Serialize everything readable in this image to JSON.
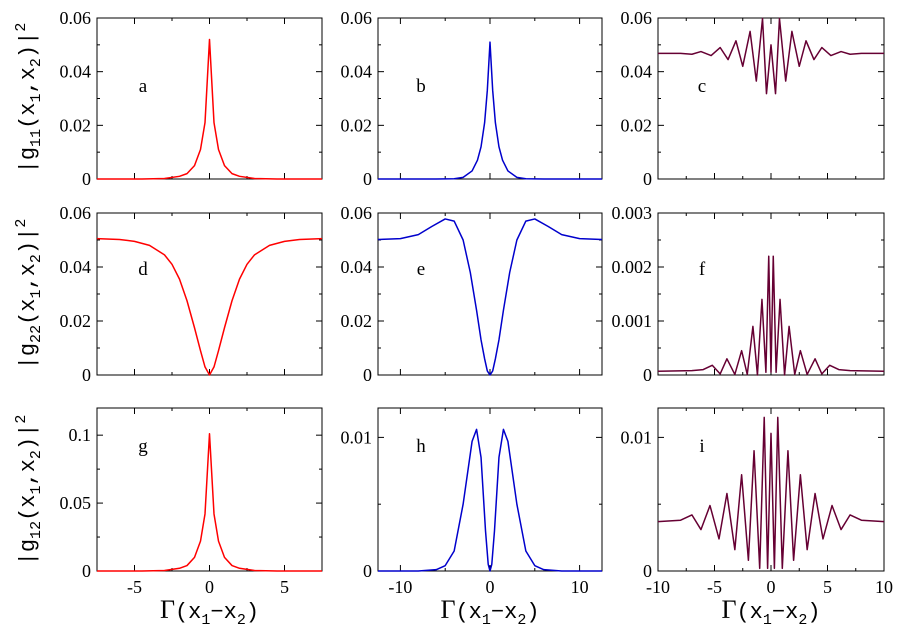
{
  "chart_data": {
    "type": "line",
    "layout": "3x3 grid, x axes shared per column, y labels per row",
    "ylabels": [
      {
        "main": "|g",
        "sub": "11",
        "rest": "(x",
        "s1": "1",
        "mid": ",x",
        "s2": "2",
        "end": ")|",
        "sup": "2"
      },
      {
        "main": "|g",
        "sub": "22",
        "rest": "(x",
        "s1": "1",
        "mid": ",x",
        "s2": "2",
        "end": ")|",
        "sup": "2"
      },
      {
        "main": "|g",
        "sub": "12",
        "rest": "(x",
        "s1": "1",
        "mid": ",x",
        "s2": "2",
        "end": ")|",
        "sup": "2"
      }
    ],
    "xlabel": {
      "gamma": "Γ",
      "a": "(x",
      "s1": "1",
      "b": "−x",
      "s2": "2",
      "c": ")"
    },
    "columns": [
      {
        "xlim": [
          -7.5,
          7.5
        ],
        "xticks": [
          -5,
          0,
          5
        ],
        "xtick_labels": [
          "-5",
          "0",
          "5"
        ]
      },
      {
        "xlim": [
          -12.5,
          12.5
        ],
        "xticks": [
          -10,
          0,
          10
        ],
        "xtick_labels": [
          "-10",
          "0",
          "10"
        ]
      },
      {
        "xlim": [
          -10,
          10
        ],
        "xticks": [
          -10,
          -5,
          0,
          5,
          10
        ],
        "xtick_labels": [
          "-10",
          "-5",
          "0",
          "5",
          "10"
        ]
      }
    ],
    "panels": [
      {
        "label": "a",
        "color": "#ff0000",
        "ylim": [
          0,
          0.06
        ],
        "yticks": [
          0,
          0.02,
          0.04,
          0.06
        ],
        "ytick_labels": [
          "0",
          "0.02",
          "0.04",
          "0.06"
        ],
        "x": [
          -7.5,
          -6,
          -4.5,
          -3,
          -2,
          -1.5,
          -1,
          -0.6,
          -0.3,
          0,
          0.3,
          0.6,
          1,
          1.5,
          2,
          3,
          4.5,
          6,
          7.5
        ],
        "y": [
          0,
          0,
          0,
          0.0002,
          0.001,
          0.002,
          0.005,
          0.011,
          0.021,
          0.052,
          0.021,
          0.011,
          0.005,
          0.002,
          0.001,
          0.0002,
          0,
          0,
          0
        ]
      },
      {
        "label": "b",
        "color": "#0000cc",
        "ylim": [
          0,
          0.06
        ],
        "yticks": [
          0,
          0.02,
          0.04,
          0.06
        ],
        "ytick_labels": [
          "0",
          "0.02",
          "0.04",
          "0.06"
        ],
        "x": [
          -12.5,
          -6,
          -4,
          -3,
          -2,
          -1.4,
          -1,
          -0.6,
          -0.3,
          0,
          0.3,
          0.6,
          1,
          1.4,
          2,
          3,
          4,
          6,
          12.5
        ],
        "y": [
          0,
          0,
          0.0001,
          0.0006,
          0.003,
          0.007,
          0.012,
          0.021,
          0.033,
          0.051,
          0.033,
          0.021,
          0.012,
          0.007,
          0.003,
          0.0006,
          0.0001,
          0,
          0
        ]
      },
      {
        "label": "c",
        "color": "#660033",
        "ylim": [
          0,
          0.06
        ],
        "yticks": [
          0,
          0.02,
          0.04,
          0.06
        ],
        "ytick_labels": [
          "0",
          "0.02",
          "0.04",
          "0.06"
        ],
        "x": [
          -10,
          -8,
          -7,
          -6.2,
          -5.3,
          -4.5,
          -3.8,
          -3.1,
          -2.5,
          -1.85,
          -1.3,
          -0.75,
          -0.4,
          0,
          0.4,
          0.75,
          1.3,
          1.85,
          2.5,
          3.1,
          3.8,
          4.5,
          5.3,
          6.2,
          7,
          8,
          10
        ],
        "y": [
          0.0468,
          0.0468,
          0.0465,
          0.0475,
          0.046,
          0.049,
          0.0445,
          0.0515,
          0.042,
          0.055,
          0.0365,
          0.0598,
          0.0318,
          0.05,
          0.0318,
          0.0598,
          0.0365,
          0.055,
          0.042,
          0.0515,
          0.0445,
          0.049,
          0.046,
          0.0475,
          0.0465,
          0.0468,
          0.0468
        ]
      },
      {
        "label": "d",
        "color": "#ff0000",
        "ylim": [
          0,
          0.06
        ],
        "yticks": [
          0,
          0.02,
          0.04,
          0.06
        ],
        "ytick_labels": [
          "0",
          "0.02",
          "0.04",
          "0.06"
        ],
        "x": [
          -7.5,
          -6,
          -5,
          -4,
          -3,
          -2.5,
          -2,
          -1.5,
          -1,
          -0.6,
          -0.3,
          0,
          0.3,
          0.6,
          1,
          1.5,
          2,
          2.5,
          3,
          4,
          5,
          6,
          7.5
        ],
        "y": [
          0.0505,
          0.0502,
          0.0495,
          0.048,
          0.0445,
          0.041,
          0.0355,
          0.0275,
          0.0175,
          0.009,
          0.003,
          0,
          0.003,
          0.009,
          0.0175,
          0.0275,
          0.0355,
          0.041,
          0.0445,
          0.048,
          0.0495,
          0.0502,
          0.0505
        ]
      },
      {
        "label": "e",
        "color": "#0000cc",
        "ylim": [
          0,
          0.06
        ],
        "yticks": [
          0,
          0.02,
          0.04,
          0.06
        ],
        "ytick_labels": [
          "0",
          "0.02",
          "0.04",
          "0.06"
        ],
        "x": [
          -12.5,
          -10,
          -8,
          -6.5,
          -5,
          -4,
          -3,
          -2.2,
          -1.5,
          -1,
          -0.6,
          -0.3,
          0,
          0.3,
          0.6,
          1,
          1.5,
          2.2,
          3,
          4,
          5,
          6.5,
          8,
          10,
          12.5
        ],
        "y": [
          0.0502,
          0.0505,
          0.052,
          0.055,
          0.0578,
          0.057,
          0.05,
          0.038,
          0.024,
          0.013,
          0.006,
          0.0015,
          0,
          0.0015,
          0.006,
          0.013,
          0.024,
          0.038,
          0.05,
          0.057,
          0.0578,
          0.055,
          0.052,
          0.0505,
          0.0502
        ]
      },
      {
        "label": "f",
        "color": "#660033",
        "ylim": [
          0,
          0.003
        ],
        "yticks": [
          0,
          0.001,
          0.002,
          0.003
        ],
        "ytick_labels": [
          "0",
          "0.001",
          "0.002",
          "0.003"
        ],
        "x": [
          -10,
          -7,
          -6,
          -5.2,
          -4.5,
          -3.9,
          -3.2,
          -2.6,
          -2.1,
          -1.6,
          -1.2,
          -0.8,
          -0.45,
          -0.2,
          0,
          0.2,
          0.45,
          0.8,
          1.2,
          1.6,
          2.1,
          2.6,
          3.2,
          3.9,
          4.5,
          5.2,
          6,
          7,
          10
        ],
        "y": [
          7e-05,
          8e-05,
          0.0001,
          0.00018,
          2e-05,
          0.0003,
          1e-05,
          0.00045,
          1e-05,
          0.0009,
          0,
          0.0014,
          5e-05,
          0.0022,
          5e-05,
          0.0022,
          5e-05,
          0.0014,
          0,
          0.0009,
          1e-05,
          0.00045,
          1e-05,
          0.0003,
          2e-05,
          0.00018,
          0.0001,
          8e-05,
          7e-05
        ]
      },
      {
        "label": "g",
        "color": "#ff0000",
        "ylim": [
          0,
          0.12
        ],
        "yticks": [
          0,
          0.05,
          0.1
        ],
        "ytick_labels": [
          "0",
          "0.05",
          "0.1"
        ],
        "x": [
          -7.5,
          -6,
          -4.5,
          -3,
          -2,
          -1.5,
          -1,
          -0.6,
          -0.3,
          0,
          0.3,
          0.6,
          1,
          1.5,
          2,
          3,
          4.5,
          6,
          7.5
        ],
        "y": [
          0,
          0,
          0,
          0.0004,
          0.002,
          0.004,
          0.01,
          0.022,
          0.042,
          0.101,
          0.042,
          0.022,
          0.01,
          0.004,
          0.002,
          0.0004,
          0,
          0,
          0
        ]
      },
      {
        "label": "h",
        "color": "#0000cc",
        "ylim": [
          0,
          0.0122
        ],
        "yticks": [
          0,
          0.01
        ],
        "ytick_labels": [
          "0",
          "0.01"
        ],
        "x": [
          -12.5,
          -8,
          -6,
          -5,
          -4,
          -3,
          -2,
          -1.5,
          -1,
          -0.5,
          -0.2,
          0,
          0.2,
          0.5,
          1,
          1.5,
          2,
          3,
          4,
          5,
          6,
          8,
          12.5
        ],
        "y": [
          0,
          0,
          0.0001,
          0.0004,
          0.0015,
          0.005,
          0.0097,
          0.0106,
          0.0085,
          0.003,
          0.0005,
          0,
          0.0005,
          0.003,
          0.0085,
          0.0106,
          0.0097,
          0.005,
          0.0015,
          0.0004,
          0.0001,
          0,
          0
        ]
      },
      {
        "label": "i",
        "color": "#660033",
        "ylim": [
          0,
          0.0122
        ],
        "yticks": [
          0,
          0.01
        ],
        "ytick_labels": [
          "0",
          "0.01"
        ],
        "x": [
          -10,
          -8,
          -7,
          -6.2,
          -5.4,
          -4.6,
          -3.9,
          -3.2,
          -2.6,
          -2,
          -1.5,
          -1,
          -0.6,
          -0.3,
          0,
          0.3,
          0.6,
          1,
          1.5,
          2,
          2.6,
          3.2,
          3.9,
          4.6,
          5.4,
          6.2,
          7,
          8,
          10
        ],
        "y": [
          0.0037,
          0.0038,
          0.0042,
          0.0031,
          0.0049,
          0.0024,
          0.0058,
          0.0016,
          0.0072,
          0.0008,
          0.009,
          0.0002,
          0.0115,
          0.0002,
          0.0103,
          0.0002,
          0.0115,
          0.0002,
          0.009,
          0.0008,
          0.0072,
          0.0016,
          0.0058,
          0.0024,
          0.0049,
          0.0031,
          0.0042,
          0.0038,
          0.0037
        ]
      }
    ]
  }
}
